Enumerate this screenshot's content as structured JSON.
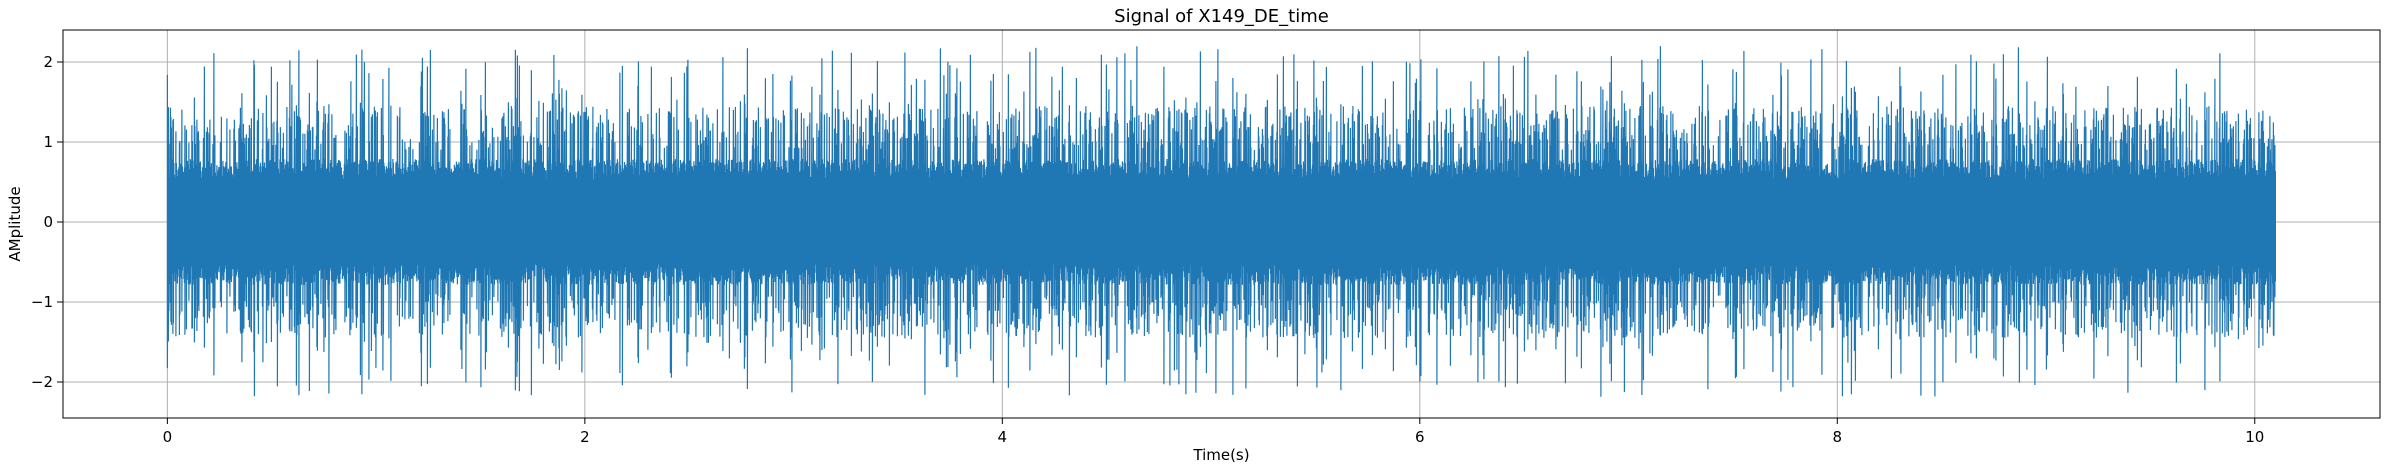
{
  "chart_data": {
    "type": "line",
    "title": "Signal of X149_DE_time",
    "xlabel": "Time(s)",
    "ylabel": "AMplitude",
    "xlim": [
      -0.5,
      10.6
    ],
    "ylim": [
      -2.45,
      2.4
    ],
    "xticks": [
      0,
      2,
      4,
      6,
      8,
      10
    ],
    "yticks": [
      -2,
      -1,
      0,
      1,
      2
    ],
    "xtick_labels": [
      "0",
      "2",
      "4",
      "6",
      "8",
      "10"
    ],
    "ytick_labels": [
      "−2",
      "−1",
      "0",
      "1",
      "2"
    ],
    "grid": true,
    "series": [
      {
        "color": "#1f77b4",
        "x_range": [
          0,
          10.1
        ],
        "core_band": [
          -0.75,
          0.75
        ],
        "spike_max": 2.2,
        "spike_min": -2.2
      }
    ]
  }
}
